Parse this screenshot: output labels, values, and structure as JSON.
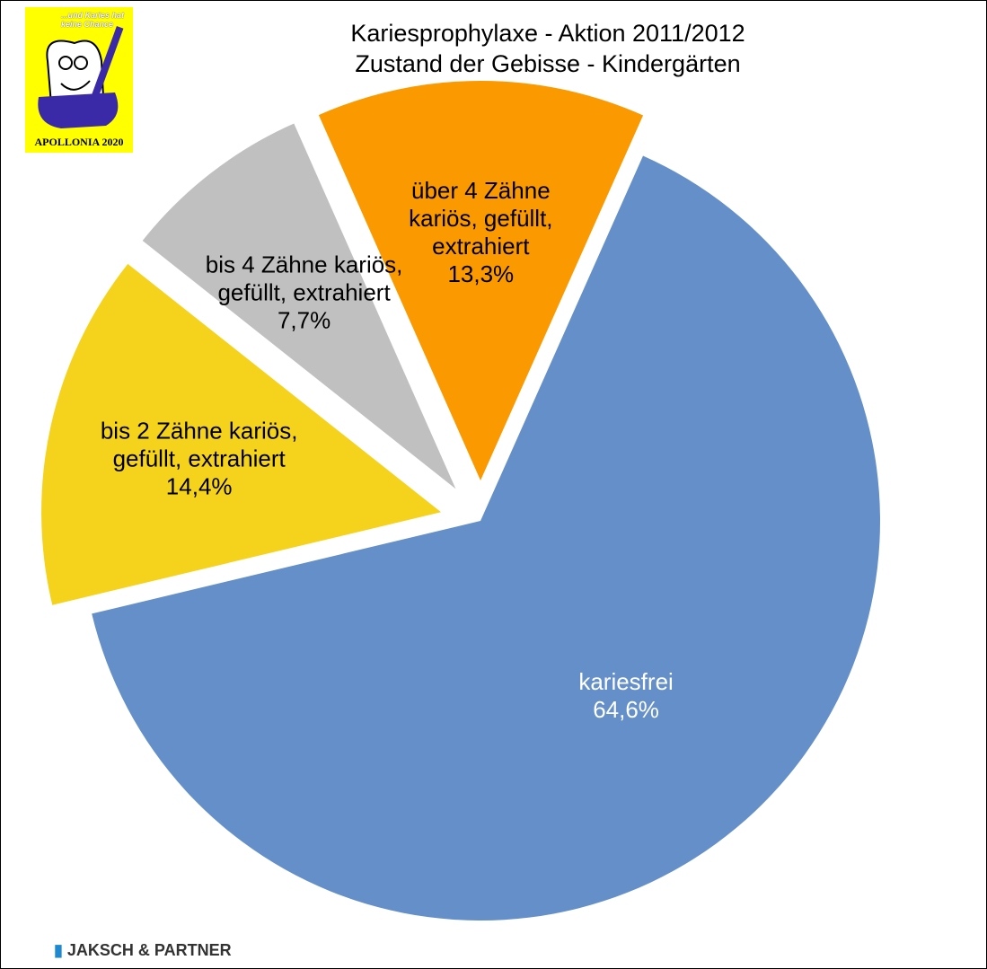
{
  "chart_data": {
    "type": "pie",
    "title": [
      "Kariesprophylaxe - Aktion 2011/2012",
      "Zustand der Gebisse - Kindergärten"
    ],
    "categories": [
      "kariesfrei",
      "bis 2 Zähne kariös, gefüllt, extrahiert",
      "bis 4 Zähne kariös, gefüllt, extrahiert",
      "über 4 Zähne kariös, gefüllt, extrahiert"
    ],
    "values": [
      64.6,
      14.4,
      7.7,
      13.3
    ],
    "value_labels": [
      "64,6%",
      "14,4%",
      "7,7%",
      "13,3%"
    ],
    "colors": [
      "#648fc9",
      "#f5d31c",
      "#c0c0c0",
      "#fb9900"
    ],
    "label_colors": [
      "#ffffff",
      "#000000",
      "#000000",
      "#000000"
    ]
  },
  "logo": {
    "text": "...und Karies hat keine Chance",
    "badge": "APOLLONIA 2020"
  },
  "footer": "JAKSCH & PARTNER"
}
